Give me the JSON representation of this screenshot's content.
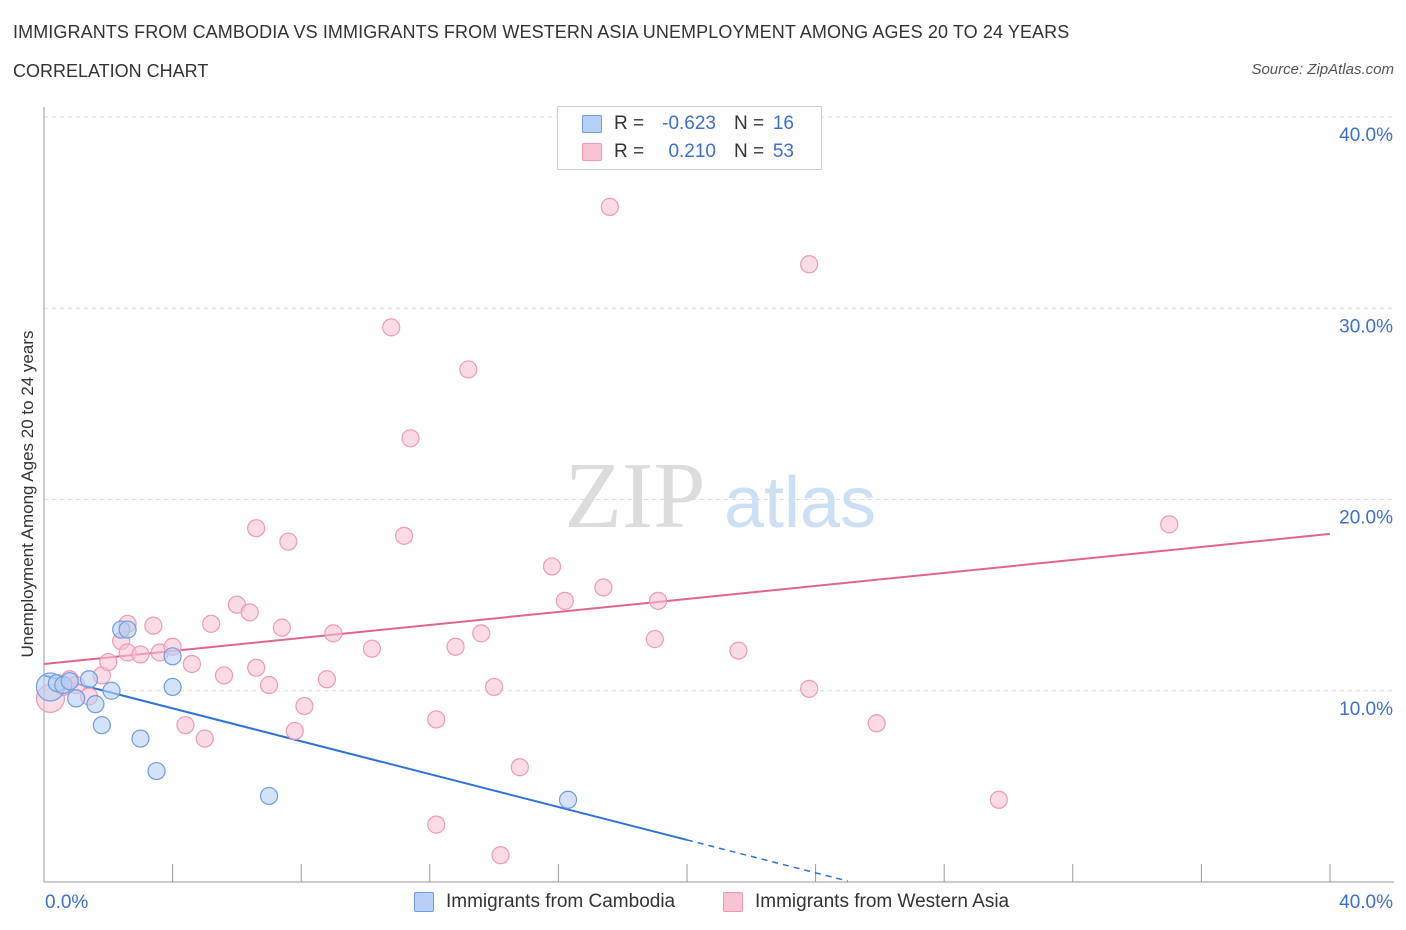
{
  "header": {
    "title": "IMMIGRANTS FROM CAMBODIA VS IMMIGRANTS FROM WESTERN ASIA UNEMPLOYMENT AMONG AGES 20 TO 24 YEARS",
    "subtitle": "CORRELATION CHART",
    "source": "Source: ZipAtlas.com"
  },
  "watermark": {
    "zip": "ZIP",
    "atlas": "atlas"
  },
  "legend": {
    "r_label": "R =",
    "n_label": "N =",
    "series1": {
      "r": "-0.623",
      "n": "16"
    },
    "series2": {
      "r": "0.210",
      "n": "53"
    }
  },
  "bottom_legend": {
    "series1": "Immigrants from Cambodia",
    "series2": "Immigrants from Western Asia"
  },
  "colors": {
    "series1_fill": "#b8d0f5",
    "series1_stroke": "#6f9be0",
    "series1_line": "#2f72d6",
    "series2_fill": "#f8c3d3",
    "series2_stroke": "#ee9ab5",
    "series2_line": "#e0648f",
    "axis_text": "#3b6fd0",
    "grid": "#dddddd"
  },
  "chart_data": {
    "type": "scatter",
    "title": "IMMIGRANTS FROM CAMBODIA VS IMMIGRANTS FROM WESTERN ASIA UNEMPLOYMENT AMONG AGES 20 TO 24 YEARS",
    "xlabel": "",
    "ylabel": "Unemployment Among Ages 20 to 24 years",
    "xlim": [
      0,
      40
    ],
    "ylim": [
      0,
      40
    ],
    "x_tick_labels": [
      "0.0%",
      "40.0%"
    ],
    "y_ticks": [
      {
        "value": 10,
        "label": "10.0%"
      },
      {
        "value": 20,
        "label": "20.0%"
      },
      {
        "value": 30,
        "label": "30.0%"
      },
      {
        "value": 40,
        "label": "40.0%"
      }
    ],
    "series": [
      {
        "name": "Immigrants from Cambodia",
        "points": [
          {
            "x": 0.2,
            "y": 10.2,
            "big": true
          },
          {
            "x": 0.4,
            "y": 10.4
          },
          {
            "x": 0.6,
            "y": 10.3
          },
          {
            "x": 0.8,
            "y": 10.5
          },
          {
            "x": 1.0,
            "y": 9.6
          },
          {
            "x": 1.4,
            "y": 10.6
          },
          {
            "x": 1.6,
            "y": 9.3
          },
          {
            "x": 1.8,
            "y": 8.2
          },
          {
            "x": 2.1,
            "y": 10.0
          },
          {
            "x": 2.4,
            "y": 13.2
          },
          {
            "x": 2.6,
            "y": 13.2
          },
          {
            "x": 3.0,
            "y": 7.5
          },
          {
            "x": 3.5,
            "y": 5.8
          },
          {
            "x": 4.0,
            "y": 11.8
          },
          {
            "x": 4.0,
            "y": 10.2
          },
          {
            "x": 7.0,
            "y": 4.5
          },
          {
            "x": 16.3,
            "y": 4.3
          }
        ],
        "trend": {
          "x_start": 0,
          "y_start": 10.8,
          "x_solid_end": 20.0,
          "x_dash_end": 25.0,
          "slope": -0.43
        }
      },
      {
        "name": "Immigrants from Western Asia",
        "points": [
          {
            "x": 0.2,
            "y": 9.6,
            "big": true
          },
          {
            "x": 0.6,
            "y": 10.2
          },
          {
            "x": 0.8,
            "y": 10.6
          },
          {
            "x": 1.0,
            "y": 10.3
          },
          {
            "x": 1.4,
            "y": 9.7
          },
          {
            "x": 1.8,
            "y": 10.8
          },
          {
            "x": 2.0,
            "y": 11.5
          },
          {
            "x": 2.4,
            "y": 12.6
          },
          {
            "x": 2.6,
            "y": 13.5
          },
          {
            "x": 2.6,
            "y": 12.0
          },
          {
            "x": 3.0,
            "y": 11.9
          },
          {
            "x": 3.4,
            "y": 13.4
          },
          {
            "x": 3.6,
            "y": 12.0
          },
          {
            "x": 4.0,
            "y": 12.3
          },
          {
            "x": 4.4,
            "y": 8.2
          },
          {
            "x": 4.6,
            "y": 11.4
          },
          {
            "x": 5.0,
            "y": 7.5
          },
          {
            "x": 5.2,
            "y": 13.5
          },
          {
            "x": 5.6,
            "y": 10.8
          },
          {
            "x": 6.0,
            "y": 14.5
          },
          {
            "x": 6.4,
            "y": 14.1
          },
          {
            "x": 6.6,
            "y": 11.2
          },
          {
            "x": 6.6,
            "y": 18.5
          },
          {
            "x": 7.0,
            "y": 10.3
          },
          {
            "x": 7.4,
            "y": 13.3
          },
          {
            "x": 7.6,
            "y": 17.8
          },
          {
            "x": 7.8,
            "y": 7.9
          },
          {
            "x": 8.1,
            "y": 9.2
          },
          {
            "x": 8.8,
            "y": 10.6
          },
          {
            "x": 9.0,
            "y": 13.0
          },
          {
            "x": 10.2,
            "y": 12.2
          },
          {
            "x": 10.8,
            "y": 29.0
          },
          {
            "x": 11.2,
            "y": 18.1
          },
          {
            "x": 11.4,
            "y": 23.2
          },
          {
            "x": 12.2,
            "y": 8.5
          },
          {
            "x": 12.2,
            "y": 3.0
          },
          {
            "x": 12.8,
            "y": 12.3
          },
          {
            "x": 13.2,
            "y": 26.8
          },
          {
            "x": 13.6,
            "y": 13.0
          },
          {
            "x": 14.0,
            "y": 10.2
          },
          {
            "x": 14.2,
            "y": 1.4
          },
          {
            "x": 14.8,
            "y": 6.0
          },
          {
            "x": 15.8,
            "y": 16.5
          },
          {
            "x": 16.2,
            "y": 14.7
          },
          {
            "x": 17.4,
            "y": 15.4
          },
          {
            "x": 17.6,
            "y": 35.3
          },
          {
            "x": 19.0,
            "y": 12.7
          },
          {
            "x": 19.1,
            "y": 14.7
          },
          {
            "x": 21.6,
            "y": 12.1
          },
          {
            "x": 23.8,
            "y": 32.3
          },
          {
            "x": 23.8,
            "y": 10.1
          },
          {
            "x": 25.9,
            "y": 8.3
          },
          {
            "x": 29.7,
            "y": 4.3
          },
          {
            "x": 35.0,
            "y": 18.7
          }
        ],
        "trend": {
          "x_start": 0,
          "y_start": 11.4,
          "x_end": 40,
          "y_end": 18.2
        }
      }
    ]
  }
}
